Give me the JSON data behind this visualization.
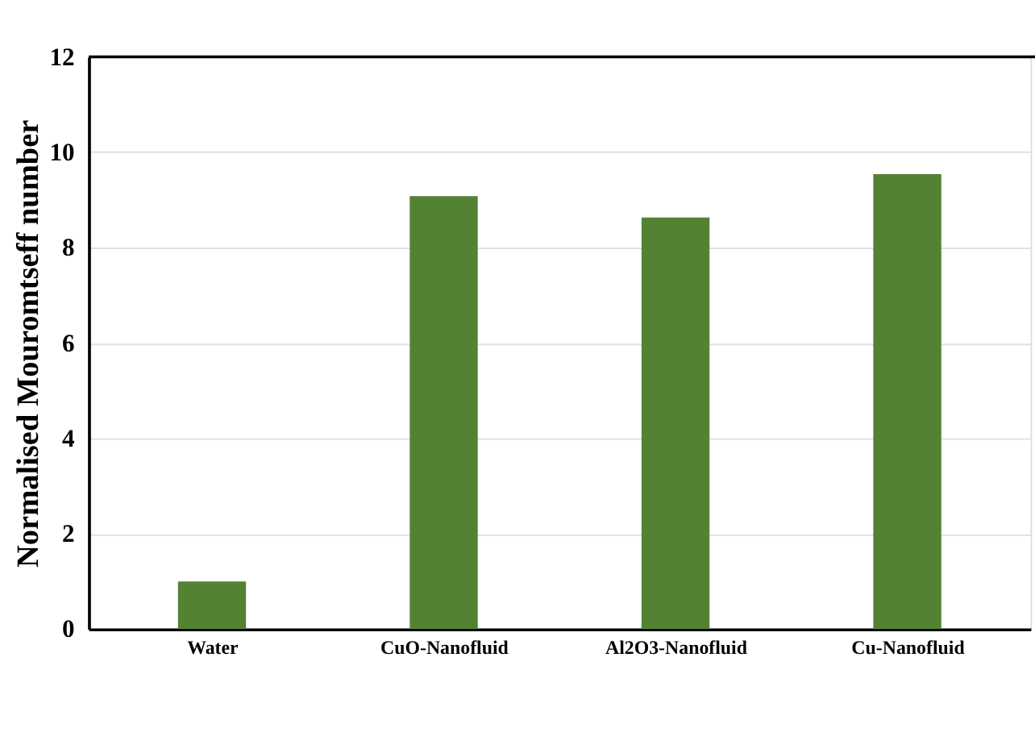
{
  "chart_data": {
    "type": "bar",
    "ylabel": "Normalised Mouromtseff number",
    "categories": [
      "Water",
      "CuO-Nanofluid",
      "Al2O3-Nanofluid",
      "Cu-Nanofluid"
    ],
    "values": [
      1.0,
      9.08,
      8.63,
      9.54
    ],
    "color": "#548235",
    "ylim": [
      0,
      12
    ],
    "yticks": [
      0,
      2,
      4,
      6,
      8,
      10,
      12
    ],
    "grid": "y"
  }
}
